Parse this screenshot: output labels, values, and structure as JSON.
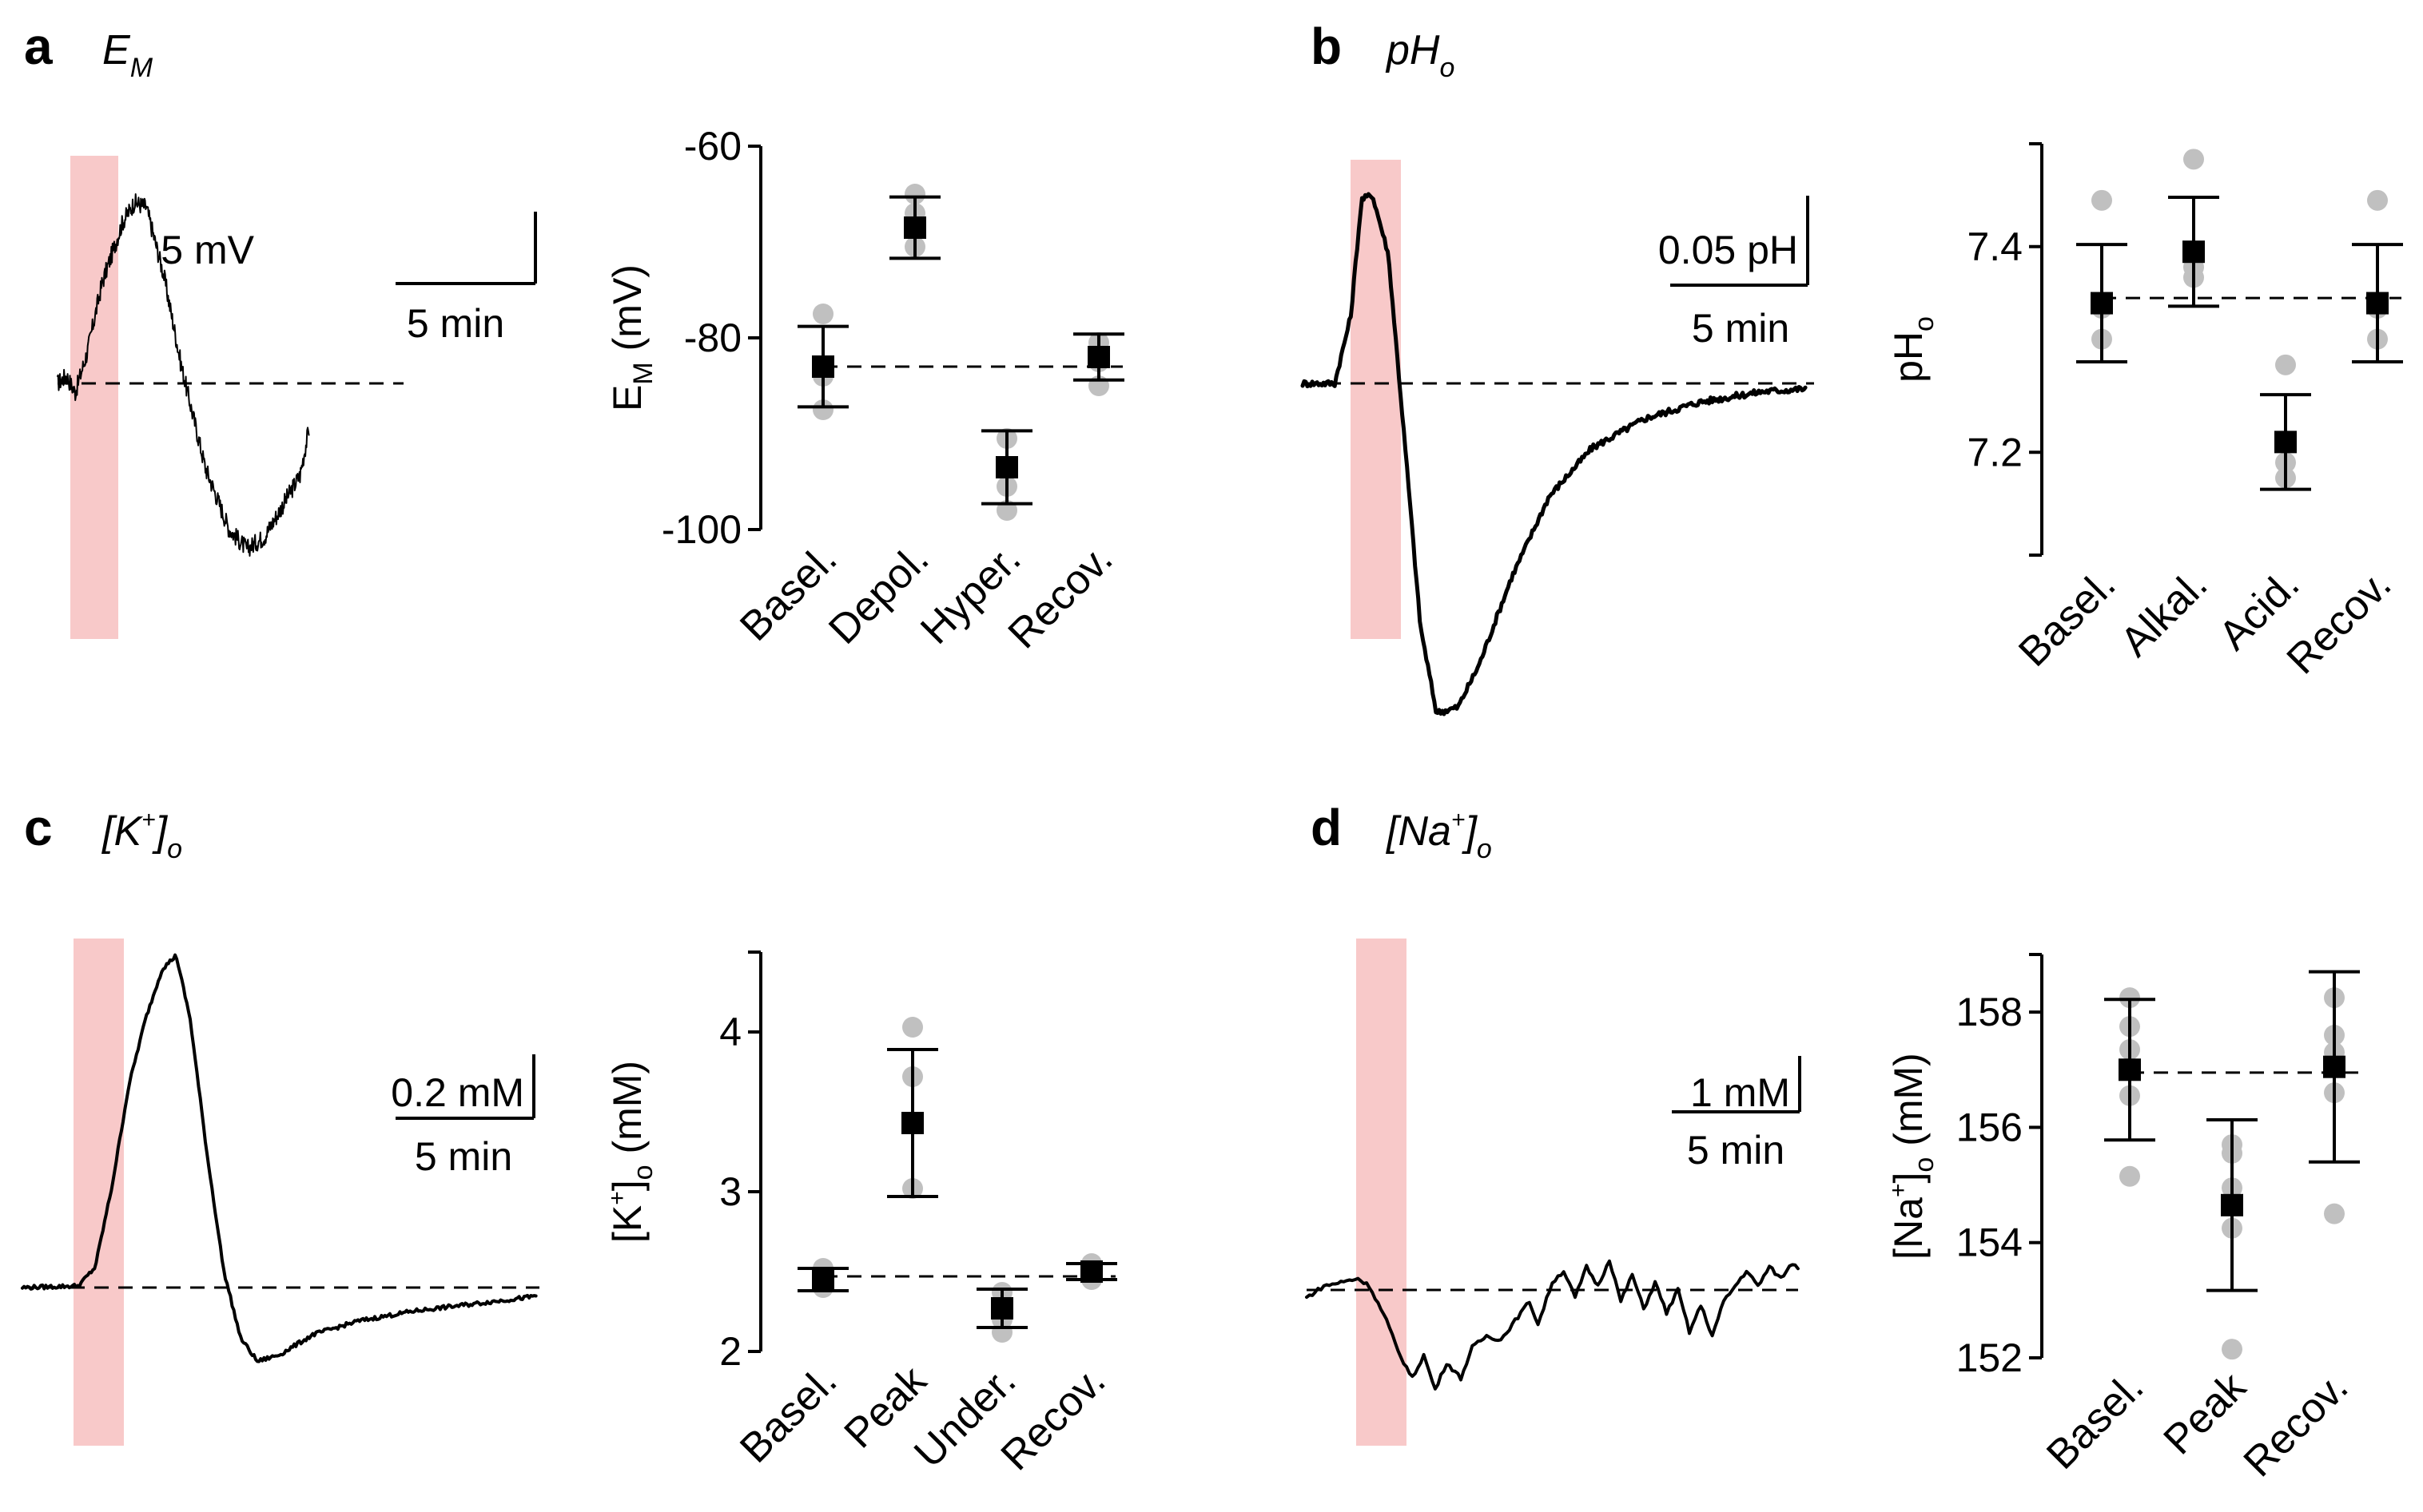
{
  "chart_data": [
    {
      "id": "a",
      "letter": "a",
      "title": {
        "main": "E",
        "sub": "M",
        "sup": ""
      },
      "type": "line",
      "trace": {
        "description_visible": false,
        "baseline_value": 0,
        "scale_bar": {
          "y_label": "5 mV",
          "x_label": "5 min"
        },
        "points_rel": [
          [
            0,
            0
          ],
          [
            0.3,
            0.5
          ],
          [
            0.6,
            -0.6
          ],
          [
            1.0,
            2.0
          ],
          [
            1.5,
            6.5
          ],
          [
            2.2,
            10.5
          ],
          [
            2.6,
            11.8
          ],
          [
            3.0,
            11.5
          ],
          [
            3.6,
            7.0
          ],
          [
            4.2,
            1.0
          ],
          [
            5.0,
            -5.5
          ],
          [
            5.8,
            -9.5
          ],
          [
            6.4,
            -10.8
          ],
          [
            7.0,
            -10.0
          ],
          [
            7.6,
            -8.0
          ],
          [
            8.2,
            -6.0
          ],
          [
            8.5,
            -3.0
          ]
        ],
        "noise": 0.6,
        "sample_density": 0.02
      },
      "stim": {
        "x0": 0.05,
        "x1": 0.85
      },
      "summary": {
        "type": "scatter",
        "ylabel": {
          "main": "E",
          "sub": "M",
          "after": " (mV)",
          "sup": ""
        },
        "ylim": [
          -100,
          -60
        ],
        "yticks": [
          -60,
          -80,
          -100
        ],
        "categories": [
          "Basel.",
          "Depol.",
          "Hyper.",
          "Recov."
        ],
        "means": [
          -83,
          -68.5,
          -93.5,
          -82
        ],
        "errors": [
          4.2,
          3.2,
          3.8,
          2.4
        ],
        "points": [
          [
            -77.5,
            -84,
            -87.5
          ],
          [
            -65,
            -67,
            -70.5
          ],
          [
            -90.5,
            -95.5,
            -98
          ],
          [
            -80.5,
            -82.5,
            -85
          ]
        ],
        "baseline": -83
      }
    },
    {
      "id": "b",
      "letter": "b",
      "title": {
        "main": "pH",
        "sub": "o",
        "sup": ""
      },
      "type": "line",
      "trace": {
        "baseline_value": 0,
        "scale_bar": {
          "y_label": "0.05 pH",
          "x_label": "5 min"
        },
        "points_rel": [
          [
            0,
            0
          ],
          [
            0.6,
            0
          ],
          [
            0.9,
            0.025
          ],
          [
            1.1,
            0.068
          ],
          [
            1.3,
            0.07
          ],
          [
            1.6,
            0.048
          ],
          [
            1.9,
            -0.02
          ],
          [
            2.2,
            -0.09
          ],
          [
            2.5,
            -0.122
          ],
          [
            2.9,
            -0.12
          ],
          [
            3.3,
            -0.104
          ],
          [
            3.9,
            -0.072
          ],
          [
            4.6,
            -0.042
          ],
          [
            5.4,
            -0.024
          ],
          [
            6.4,
            -0.013
          ],
          [
            7.4,
            -0.007
          ],
          [
            8.6,
            -0.003
          ],
          [
            9.4,
            -0.002
          ]
        ],
        "noise": 0.0012,
        "sample_density": 0.03
      },
      "stim": {
        "x0": 0.85,
        "x1": 1.7
      },
      "summary": {
        "type": "scatter",
        "ylabel": {
          "main": "pH",
          "sub": "o",
          "after": "",
          "sup": ""
        },
        "ylim": [
          7.1,
          7.5
        ],
        "yticks": [
          7.2,
          7.4
        ],
        "categories": [
          "Basel.",
          "Alkal.",
          "Acid.",
          "Recov."
        ],
        "means": [
          7.345,
          7.395,
          7.21,
          7.345
        ],
        "errors": [
          0.057,
          0.053,
          0.046,
          0.057
        ],
        "points": [
          [
            7.445,
            7.34,
            7.31
          ],
          [
            7.485,
            7.38,
            7.37
          ],
          [
            7.285,
            7.19,
            7.175
          ],
          [
            7.445,
            7.34,
            7.31
          ]
        ],
        "baseline": 7.35
      }
    },
    {
      "id": "c",
      "letter": "c",
      "title": {
        "main": "[K",
        "sub": "o",
        "sup": "+",
        "close": "]"
      },
      "type": "line",
      "trace": {
        "baseline_value": 0,
        "scale_bar": {
          "y_label": "0.2 mM",
          "x_label": "5 min"
        },
        "points_rel": [
          [
            0,
            0
          ],
          [
            1.0,
            0.005
          ],
          [
            1.3,
            0.06
          ],
          [
            1.6,
            0.3
          ],
          [
            1.9,
            0.6
          ],
          [
            2.2,
            0.8
          ],
          [
            2.5,
            0.95
          ],
          [
            2.75,
            0.99
          ],
          [
            3.0,
            0.8
          ],
          [
            3.3,
            0.4
          ],
          [
            3.6,
            0.05
          ],
          [
            3.9,
            -0.15
          ],
          [
            4.2,
            -0.22
          ],
          [
            4.6,
            -0.2
          ],
          [
            5.2,
            -0.14
          ],
          [
            6.0,
            -0.1
          ],
          [
            7.0,
            -0.07
          ],
          [
            8.0,
            -0.05
          ],
          [
            9.0,
            -0.03
          ],
          [
            9.2,
            -0.025
          ]
        ],
        "noise": 0.006,
        "sample_density": 0.03
      },
      "stim": {
        "x0": 0.9,
        "x1": 1.8
      },
      "summary": {
        "type": "scatter",
        "ylabel": {
          "main": "[K",
          "sup": "+",
          "close": "]",
          "sub": "o",
          "after": " (mM)"
        },
        "ylim": [
          2,
          4.5
        ],
        "yticks": [
          2,
          3,
          4
        ],
        "categories": [
          "Basel.",
          "Peak",
          "Under.",
          "Recov."
        ],
        "means": [
          2.45,
          3.43,
          2.27,
          2.5
        ],
        "errors": [
          0.07,
          0.46,
          0.12,
          0.05
        ],
        "points": [
          [
            2.52,
            2.45,
            2.4
          ],
          [
            4.03,
            3.72,
            3.02
          ],
          [
            2.37,
            2.2,
            2.12
          ],
          [
            2.55,
            2.5,
            2.45
          ]
        ],
        "baseline": 2.47
      }
    },
    {
      "id": "d",
      "letter": "d",
      "title": {
        "main": "[Na",
        "sub": "o",
        "sup": "+",
        "close": "]"
      },
      "type": "line",
      "trace": {
        "baseline_value": 0,
        "scale_bar": {
          "y_label": "1 mM",
          "x_label": "5 min"
        },
        "points_rel": [
          [
            0,
            -0.2
          ],
          [
            0.3,
            0.1
          ],
          [
            0.6,
            0.2
          ],
          [
            0.9,
            0.3
          ],
          [
            1.1,
            0.1
          ],
          [
            1.4,
            -0.8
          ],
          [
            1.6,
            -1.6
          ],
          [
            1.85,
            -2.3
          ],
          [
            2.05,
            -1.7
          ],
          [
            2.25,
            -2.6
          ],
          [
            2.45,
            -1.9
          ],
          [
            2.7,
            -2.3
          ],
          [
            2.9,
            -1.5
          ],
          [
            3.15,
            -1.2
          ],
          [
            3.4,
            -1.3
          ],
          [
            3.65,
            -0.8
          ],
          [
            3.9,
            -0.3
          ],
          [
            4.05,
            -0.9
          ],
          [
            4.3,
            0.2
          ],
          [
            4.5,
            0.5
          ],
          [
            4.7,
            -0.2
          ],
          [
            4.9,
            0.6
          ],
          [
            5.1,
            0.1
          ],
          [
            5.3,
            0.8
          ],
          [
            5.5,
            -0.3
          ],
          [
            5.7,
            0.4
          ],
          [
            5.9,
            -0.5
          ],
          [
            6.1,
            0.2
          ],
          [
            6.3,
            -0.6
          ],
          [
            6.5,
            0.0
          ],
          [
            6.7,
            -1.1
          ],
          [
            6.9,
            -0.4
          ],
          [
            7.1,
            -1.2
          ],
          [
            7.3,
            -0.3
          ],
          [
            7.5,
            0.1
          ],
          [
            7.7,
            0.5
          ],
          [
            7.9,
            0.1
          ],
          [
            8.1,
            0.6
          ],
          [
            8.3,
            0.3
          ],
          [
            8.5,
            0.7
          ],
          [
            8.6,
            0.6
          ]
        ],
        "noise": 0.05,
        "sample_density": 0.05
      },
      "stim": {
        "x0": 0.9,
        "x1": 1.8
      },
      "summary": {
        "type": "scatter",
        "ylabel": {
          "main": "[Na",
          "sup": "+",
          "close": "]",
          "sub": "o",
          "after": " (mM)"
        },
        "ylim": [
          152,
          159
        ],
        "yticks": [
          152,
          154,
          156,
          158
        ],
        "categories": [
          "Basel.",
          "Peak",
          "Recov."
        ],
        "means": [
          157.0,
          154.65,
          157.05
        ],
        "errors": [
          1.22,
          1.48,
          1.65
        ],
        "points": [
          [
            158.25,
            157.75,
            157.35,
            156.55,
            155.15
          ],
          [
            155.7,
            155.55,
            154.95,
            154.25,
            152.15
          ],
          [
            158.25,
            157.6,
            157.3,
            156.6,
            154.5
          ]
        ],
        "baseline": 156.95
      }
    }
  ]
}
